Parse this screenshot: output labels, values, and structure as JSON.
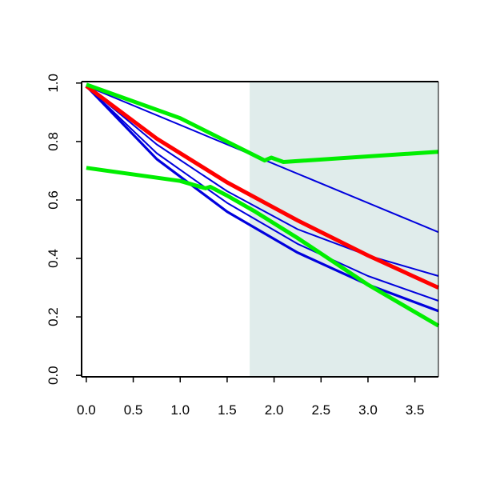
{
  "chart_data": {
    "type": "line",
    "title": "",
    "xlabel": "",
    "ylabel": "",
    "xlim": [
      -0.05,
      3.75
    ],
    "ylim": [
      -0.005,
      1.005
    ],
    "x_ticks": [
      "0.0",
      "0.5",
      "1.0",
      "1.5",
      "2.0",
      "2.5",
      "3.0",
      "3.5"
    ],
    "y_ticks": [
      "0.0",
      "0.2",
      "0.4",
      "0.6",
      "0.8",
      "1.0"
    ],
    "grid": false,
    "legend": "none",
    "shaded_region": {
      "x": [
        1.74,
        3.75
      ],
      "color": "#e0eceb"
    },
    "series": [
      {
        "color": "#0000dd",
        "style": "thin",
        "points": [
          [
            0,
            0.99
          ],
          [
            3.75,
            0.49
          ]
        ]
      },
      {
        "color": "#0000dd",
        "style": "thin",
        "points": [
          [
            0,
            0.99
          ],
          [
            0.75,
            0.79
          ],
          [
            1.5,
            0.63
          ],
          [
            2.25,
            0.5
          ],
          [
            3.0,
            0.41
          ],
          [
            3.75,
            0.34
          ]
        ]
      },
      {
        "color": "#0000dd",
        "style": "thin",
        "points": [
          [
            0,
            0.99
          ],
          [
            0.75,
            0.76
          ],
          [
            1.5,
            0.59
          ],
          [
            2.25,
            0.45
          ],
          [
            3.0,
            0.34
          ],
          [
            3.75,
            0.255
          ]
        ]
      },
      {
        "color": "#0000dd",
        "style": "medium",
        "points": [
          [
            0,
            0.99
          ],
          [
            0.75,
            0.74
          ],
          [
            1.5,
            0.56
          ],
          [
            2.25,
            0.42
          ],
          [
            3.0,
            0.31
          ],
          [
            3.75,
            0.22
          ]
        ]
      },
      {
        "color": "#ff0000",
        "style": "thick",
        "points": [
          [
            0,
            0.99
          ],
          [
            0.75,
            0.81
          ],
          [
            1.5,
            0.66
          ],
          [
            2.25,
            0.53
          ],
          [
            3.0,
            0.41
          ],
          [
            3.75,
            0.3
          ]
        ]
      },
      {
        "color": "#00ee00",
        "style": "thick",
        "points": [
          [
            0,
            0.995
          ],
          [
            1.0,
            0.88
          ],
          [
            1.9,
            0.735
          ],
          [
            1.97,
            0.745
          ],
          [
            2.1,
            0.73
          ],
          [
            3.75,
            0.765
          ]
        ]
      },
      {
        "color": "#00ee00",
        "style": "thick",
        "points": [
          [
            0,
            0.71
          ],
          [
            1.0,
            0.665
          ],
          [
            1.27,
            0.64
          ],
          [
            1.32,
            0.645
          ],
          [
            1.5,
            0.615
          ],
          [
            1.8,
            0.56
          ],
          [
            2.25,
            0.47
          ],
          [
            3.0,
            0.31
          ],
          [
            3.75,
            0.17
          ]
        ]
      }
    ]
  }
}
